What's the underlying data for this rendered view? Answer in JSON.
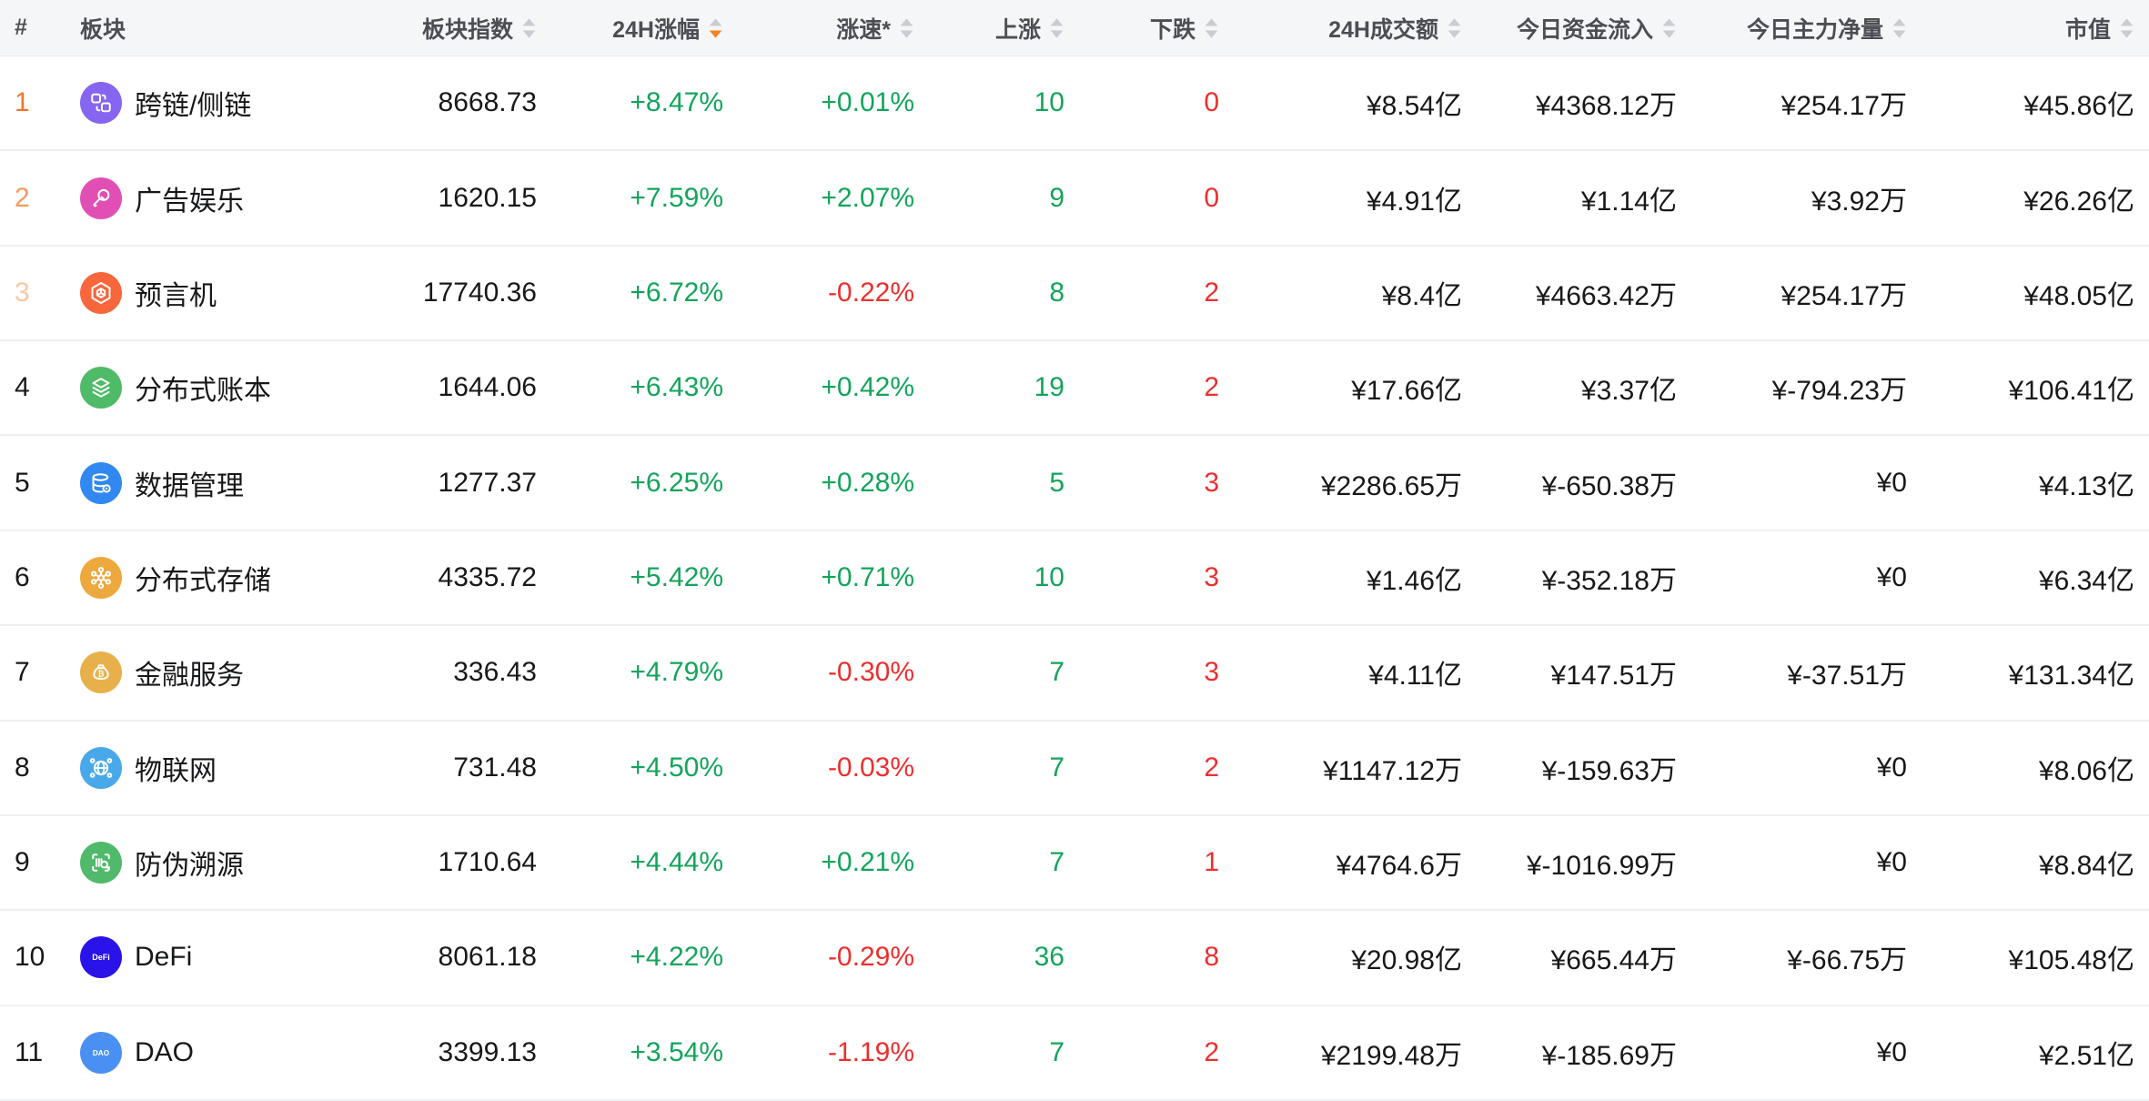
{
  "colors": {
    "green": "#13A45B",
    "red": "#EC2F2F",
    "rank_top": "#F0752E",
    "rank_second": "#F49A63",
    "rank_third": "#F8C7A4",
    "sort_active": "#F5831F",
    "sort_idle": "#C9CCD3",
    "header_bg": "#F5F6F7",
    "header_text": "#4C4E54",
    "body_text": "#17181A",
    "divider": "#EFF0F2"
  },
  "table": {
    "columns": [
      {
        "key": "rank",
        "label": "#",
        "align": "left",
        "sortable": false
      },
      {
        "key": "name",
        "label": "板块",
        "align": "left",
        "sortable": false
      },
      {
        "key": "index",
        "label": "板块指数",
        "align": "right",
        "sortable": true,
        "sort": null
      },
      {
        "key": "change24h",
        "label": "24H涨幅",
        "align": "right",
        "sortable": true,
        "sort": "desc"
      },
      {
        "key": "speed",
        "label": "涨速*",
        "align": "right",
        "sortable": true,
        "sort": null
      },
      {
        "key": "up",
        "label": "上涨",
        "align": "right",
        "sortable": true,
        "sort": null
      },
      {
        "key": "down",
        "label": "下跌",
        "align": "right",
        "sortable": true,
        "sort": null
      },
      {
        "key": "volume24h",
        "label": "24H成交额",
        "align": "right",
        "sortable": true,
        "sort": null
      },
      {
        "key": "inflowToday",
        "label": "今日资金流入",
        "align": "right",
        "sortable": true,
        "sort": null
      },
      {
        "key": "mainNetToday",
        "label": "今日主力净量",
        "align": "right",
        "sortable": true,
        "sort": null
      },
      {
        "key": "marketCap",
        "label": "市值",
        "align": "right",
        "sortable": true,
        "sort": null
      }
    ],
    "rows": [
      {
        "rank": "1",
        "name": "跨链/侧链",
        "icon": {
          "name": "cross-chain-icon",
          "bg": "#8665F0",
          "glyph": "chain"
        },
        "index": "8668.73",
        "change24h": "+8.47%",
        "speed": "+0.01%",
        "up": "10",
        "down": "0",
        "volume24h": "¥8.54亿",
        "inflowToday": "¥4368.12万",
        "mainNetToday": "¥254.17万",
        "marketCap": "¥45.86亿"
      },
      {
        "rank": "2",
        "name": "广告娱乐",
        "icon": {
          "name": "ad-entertainment-icon",
          "bg": "#E14FB4",
          "glyph": "mic"
        },
        "index": "1620.15",
        "change24h": "+7.59%",
        "speed": "+2.07%",
        "up": "9",
        "down": "0",
        "volume24h": "¥4.91亿",
        "inflowToday": "¥1.14亿",
        "mainNetToday": "¥3.92万",
        "marketCap": "¥26.26亿"
      },
      {
        "rank": "3",
        "name": "预言机",
        "icon": {
          "name": "oracle-icon",
          "bg": "#F8673C",
          "glyph": "oracle"
        },
        "index": "17740.36",
        "change24h": "+6.72%",
        "speed": "-0.22%",
        "up": "8",
        "down": "2",
        "volume24h": "¥8.4亿",
        "inflowToday": "¥4663.42万",
        "mainNetToday": "¥254.17万",
        "marketCap": "¥48.05亿"
      },
      {
        "rank": "4",
        "name": "分布式账本",
        "icon": {
          "name": "distributed-ledger-icon",
          "bg": "#4FBA68",
          "glyph": "ledger"
        },
        "index": "1644.06",
        "change24h": "+6.43%",
        "speed": "+0.42%",
        "up": "19",
        "down": "2",
        "volume24h": "¥17.66亿",
        "inflowToday": "¥3.37亿",
        "mainNetToday": "¥-794.23万",
        "marketCap": "¥106.41亿"
      },
      {
        "rank": "5",
        "name": "数据管理",
        "icon": {
          "name": "data-management-icon",
          "bg": "#3088F0",
          "glyph": "database"
        },
        "index": "1277.37",
        "change24h": "+6.25%",
        "speed": "+0.28%",
        "up": "5",
        "down": "3",
        "volume24h": "¥2286.65万",
        "inflowToday": "¥-650.38万",
        "mainNetToday": "¥0",
        "marketCap": "¥4.13亿"
      },
      {
        "rank": "6",
        "name": "分布式存储",
        "icon": {
          "name": "distributed-storage-icon",
          "bg": "#EDA93E",
          "glyph": "storage"
        },
        "index": "4335.72",
        "change24h": "+5.42%",
        "speed": "+0.71%",
        "up": "10",
        "down": "3",
        "volume24h": "¥1.46亿",
        "inflowToday": "¥-352.18万",
        "mainNetToday": "¥0",
        "marketCap": "¥6.34亿"
      },
      {
        "rank": "7",
        "name": "金融服务",
        "icon": {
          "name": "financial-services-icon",
          "bg": "#E8B04A",
          "glyph": "finance"
        },
        "index": "336.43",
        "change24h": "+4.79%",
        "speed": "-0.30%",
        "up": "7",
        "down": "3",
        "volume24h": "¥4.11亿",
        "inflowToday": "¥147.51万",
        "mainNetToday": "¥-37.51万",
        "marketCap": "¥131.34亿"
      },
      {
        "rank": "8",
        "name": "物联网",
        "icon": {
          "name": "iot-icon",
          "bg": "#49A8E9",
          "glyph": "iot"
        },
        "index": "731.48",
        "change24h": "+4.50%",
        "speed": "-0.03%",
        "up": "7",
        "down": "2",
        "volume24h": "¥1147.12万",
        "inflowToday": "¥-159.63万",
        "mainNetToday": "¥0",
        "marketCap": "¥8.06亿"
      },
      {
        "rank": "9",
        "name": "防伪溯源",
        "icon": {
          "name": "anti-counterfeit-trace-icon",
          "bg": "#50B96A",
          "glyph": "trace"
        },
        "index": "1710.64",
        "change24h": "+4.44%",
        "speed": "+0.21%",
        "up": "7",
        "down": "1",
        "volume24h": "¥4764.6万",
        "inflowToday": "¥-1016.99万",
        "mainNetToday": "¥0",
        "marketCap": "¥8.84亿"
      },
      {
        "rank": "10",
        "name": "DeFi",
        "icon": {
          "name": "defi-icon",
          "bg": "#2A13E8",
          "glyph": "text",
          "text": "DeFi"
        },
        "index": "8061.18",
        "change24h": "+4.22%",
        "speed": "-0.29%",
        "up": "36",
        "down": "8",
        "volume24h": "¥20.98亿",
        "inflowToday": "¥665.44万",
        "mainNetToday": "¥-66.75万",
        "marketCap": "¥105.48亿"
      },
      {
        "rank": "11",
        "name": "DAO",
        "icon": {
          "name": "dao-icon",
          "bg": "#4A90F2",
          "glyph": "text",
          "text": "DAO"
        },
        "index": "3399.13",
        "change24h": "+3.54%",
        "speed": "-1.19%",
        "up": "7",
        "down": "2",
        "volume24h": "¥2199.48万",
        "inflowToday": "¥-185.69万",
        "mainNetToday": "¥0",
        "marketCap": "¥2.51亿"
      }
    ]
  }
}
